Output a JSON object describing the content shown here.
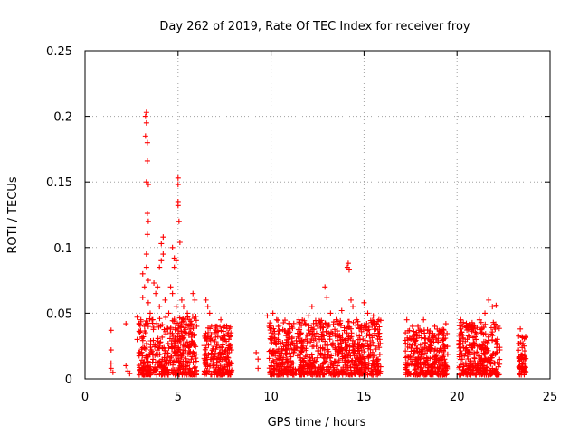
{
  "chart_data": {
    "type": "scatter",
    "title": "Day 262 of 2019, Rate Of TEC Index for receiver froy",
    "xlabel": "GPS time / hours",
    "ylabel": "ROTI / TECUs",
    "xlim": [
      0,
      25
    ],
    "ylim": [
      0,
      0.25
    ],
    "grid": true,
    "marker": "+",
    "marker_color": "#ff0000",
    "xticks": [
      0,
      5,
      10,
      15,
      20,
      25
    ],
    "xtick_labels": [
      "0",
      "5",
      "10",
      "15",
      "20",
      "25"
    ],
    "yticks": [
      0,
      0.05,
      0.1,
      0.15,
      0.2,
      0.25
    ],
    "ytick_labels": [
      "0",
      "0.05",
      "0.1",
      "0.15",
      "0.2",
      "0.25"
    ],
    "series": [
      {
        "name": "ROTI",
        "points": [
          [
            1.4,
            0.037
          ],
          [
            1.4,
            0.022
          ],
          [
            1.4,
            0.012
          ],
          [
            1.4,
            0.008
          ],
          [
            1.5,
            0.005
          ],
          [
            2.2,
            0.042
          ],
          [
            2.2,
            0.01
          ],
          [
            2.3,
            0.006
          ],
          [
            2.4,
            0.004
          ],
          [
            2.8,
            0.047
          ],
          [
            2.8,
            0.03
          ],
          [
            2.9,
            0.02
          ],
          [
            3.0,
            0.045
          ],
          [
            3.0,
            0.012
          ],
          [
            3.1,
            0.08
          ],
          [
            3.1,
            0.062
          ],
          [
            3.2,
            0.07
          ],
          [
            3.2,
            0.04
          ],
          [
            3.25,
            0.2
          ],
          [
            3.25,
            0.185
          ],
          [
            3.3,
            0.203
          ],
          [
            3.3,
            0.195
          ],
          [
            3.35,
            0.18
          ],
          [
            3.35,
            0.166
          ],
          [
            3.3,
            0.15
          ],
          [
            3.4,
            0.148
          ],
          [
            3.35,
            0.126
          ],
          [
            3.4,
            0.12
          ],
          [
            3.35,
            0.11
          ],
          [
            3.3,
            0.095
          ],
          [
            3.3,
            0.085
          ],
          [
            3.4,
            0.075
          ],
          [
            3.4,
            0.058
          ],
          [
            3.5,
            0.05
          ],
          [
            3.6,
            0.045
          ],
          [
            3.7,
            0.073
          ],
          [
            3.8,
            0.065
          ],
          [
            3.9,
            0.07
          ],
          [
            4.0,
            0.085
          ],
          [
            4.0,
            0.055
          ],
          [
            4.1,
            0.09
          ],
          [
            4.1,
            0.103
          ],
          [
            4.2,
            0.108
          ],
          [
            4.2,
            0.095
          ],
          [
            4.3,
            0.06
          ],
          [
            4.5,
            0.05
          ],
          [
            4.6,
            0.07
          ],
          [
            4.7,
            0.065
          ],
          [
            4.7,
            0.1
          ],
          [
            4.8,
            0.085
          ],
          [
            4.8,
            0.092
          ],
          [
            4.9,
            0.055
          ],
          [
            4.9,
            0.09
          ],
          [
            5.0,
            0.153
          ],
          [
            5.0,
            0.148
          ],
          [
            5.0,
            0.135
          ],
          [
            5.0,
            0.132
          ],
          [
            5.05,
            0.12
          ],
          [
            5.1,
            0.104
          ],
          [
            5.2,
            0.06
          ],
          [
            5.3,
            0.055
          ],
          [
            5.5,
            0.05
          ],
          [
            5.6,
            0.045
          ],
          [
            5.8,
            0.065
          ],
          [
            5.9,
            0.06
          ],
          [
            6.0,
            0.04
          ],
          [
            6.5,
            0.06
          ],
          [
            6.6,
            0.055
          ],
          [
            6.7,
            0.05
          ],
          [
            6.8,
            0.04
          ],
          [
            7.3,
            0.045
          ],
          [
            7.5,
            0.04
          ],
          [
            7.7,
            0.035
          ],
          [
            9.2,
            0.02
          ],
          [
            9.3,
            0.015
          ],
          [
            9.3,
            0.008
          ],
          [
            9.8,
            0.048
          ],
          [
            9.9,
            0.04
          ],
          [
            10.1,
            0.05
          ],
          [
            10.3,
            0.045
          ],
          [
            11.0,
            0.042
          ],
          [
            11.5,
            0.045
          ],
          [
            12.0,
            0.048
          ],
          [
            12.2,
            0.055
          ],
          [
            12.5,
            0.04
          ],
          [
            12.9,
            0.07
          ],
          [
            13.0,
            0.062
          ],
          [
            13.2,
            0.05
          ],
          [
            13.5,
            0.045
          ],
          [
            13.8,
            0.052
          ],
          [
            14.1,
            0.085
          ],
          [
            14.15,
            0.088
          ],
          [
            14.2,
            0.083
          ],
          [
            14.3,
            0.06
          ],
          [
            14.4,
            0.055
          ],
          [
            14.6,
            0.045
          ],
          [
            15.0,
            0.058
          ],
          [
            15.2,
            0.05
          ],
          [
            15.5,
            0.048
          ],
          [
            15.8,
            0.045
          ],
          [
            17.3,
            0.045
          ],
          [
            17.6,
            0.04
          ],
          [
            17.9,
            0.04
          ],
          [
            18.2,
            0.045
          ],
          [
            18.5,
            0.035
          ],
          [
            18.8,
            0.04
          ],
          [
            19.1,
            0.035
          ],
          [
            19.4,
            0.042
          ],
          [
            20.2,
            0.045
          ],
          [
            20.5,
            0.04
          ],
          [
            20.8,
            0.04
          ],
          [
            21.2,
            0.045
          ],
          [
            21.5,
            0.05
          ],
          [
            21.7,
            0.06
          ],
          [
            21.9,
            0.055
          ],
          [
            22.1,
            0.056
          ],
          [
            22.2,
            0.04
          ],
          [
            23.4,
            0.038
          ],
          [
            23.5,
            0.032
          ],
          [
            23.6,
            0.025
          ]
        ],
        "dense_bands": [
          {
            "x_range": [
              2.9,
              6.0
            ],
            "y_max": 0.045
          },
          {
            "x_range": [
              6.4,
              7.9
            ],
            "y_max": 0.038
          },
          {
            "x_range": [
              9.9,
              15.9
            ],
            "y_max": 0.042
          },
          {
            "x_range": [
              17.2,
              19.5
            ],
            "y_max": 0.035
          },
          {
            "x_range": [
              20.1,
              22.3
            ],
            "y_max": 0.04
          },
          {
            "x_range": [
              23.3,
              23.7
            ],
            "y_max": 0.03
          }
        ]
      }
    ]
  }
}
